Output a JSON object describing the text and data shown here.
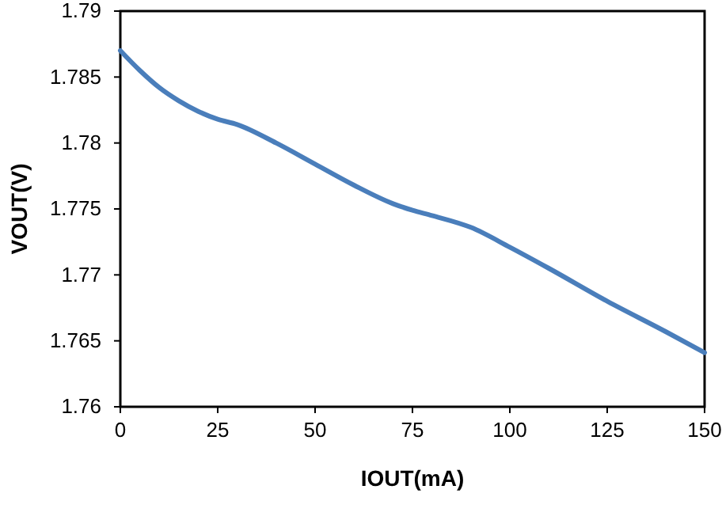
{
  "chart_data": {
    "type": "line",
    "xlabel": "IOUT(mA)",
    "ylabel": "VOUT(V)",
    "xlim": [
      0,
      150
    ],
    "xticks": [
      0,
      25,
      50,
      75,
      100,
      125,
      150
    ],
    "ylim": [
      1.76,
      1.79
    ],
    "yticks": [
      1.76,
      1.765,
      1.77,
      1.775,
      1.78,
      1.785,
      1.79
    ],
    "grid": false,
    "marker": "none",
    "line_style": "solid",
    "series": [
      {
        "color": "#4a7ebb",
        "x": [
          0,
          5,
          10,
          15,
          20,
          25,
          30,
          40,
          50,
          60,
          70,
          75,
          80,
          90,
          100,
          110,
          125,
          140,
          150
        ],
        "values": [
          1.787,
          1.7855,
          1.7842,
          1.7832,
          1.7824,
          1.7818,
          1.7814,
          1.78,
          1.7784,
          1.7768,
          1.7754,
          1.7749,
          1.7745,
          1.7736,
          1.7721,
          1.7705,
          1.768,
          1.7657,
          1.7641
        ]
      }
    ]
  }
}
